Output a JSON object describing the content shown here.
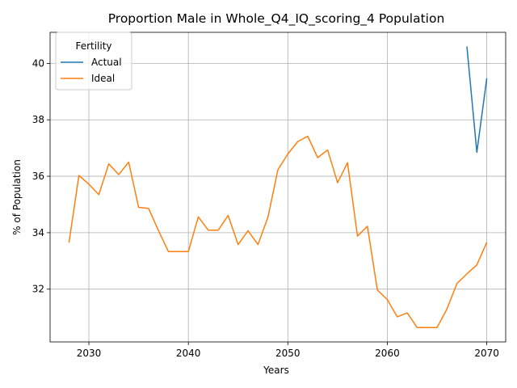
{
  "chart_data": {
    "type": "line",
    "title": "Proportion Male in Whole_Q4_IQ_scoring_4 Population",
    "xlabel": "Years",
    "ylabel": "% of Population",
    "xlim": [
      2026.1,
      2071.9
    ],
    "ylim": [
      30.13,
      41.1
    ],
    "xticks": [
      2030,
      2040,
      2050,
      2060,
      2070
    ],
    "yticks": [
      32,
      34,
      36,
      38,
      40
    ],
    "grid": true,
    "legend": {
      "title": "Fertility",
      "placement": "top-left"
    },
    "series": [
      {
        "name": "Actual",
        "color": "#1f77b4",
        "x": [
          2068,
          2069,
          2070
        ],
        "y": [
          40.6,
          36.85,
          39.47
        ]
      },
      {
        "name": "Ideal",
        "color": "#ff7f0e",
        "x": [
          2028,
          2029,
          2030,
          2031,
          2032,
          2033,
          2034,
          2035,
          2036,
          2037,
          2038,
          2039,
          2040,
          2041,
          2042,
          2043,
          2044,
          2045,
          2046,
          2047,
          2048,
          2049,
          2050,
          2051,
          2052,
          2053,
          2054,
          2055,
          2056,
          2057,
          2058,
          2059,
          2060,
          2061,
          2062,
          2063,
          2064,
          2065,
          2066,
          2067,
          2068,
          2069,
          2070
        ],
        "y": [
          33.65,
          36.03,
          35.72,
          35.35,
          36.44,
          36.06,
          36.5,
          34.9,
          34.86,
          34.07,
          33.33,
          33.33,
          33.33,
          34.56,
          34.09,
          34.09,
          34.61,
          33.58,
          34.07,
          33.58,
          34.55,
          36.23,
          36.79,
          37.23,
          37.42,
          36.66,
          36.93,
          35.77,
          36.48,
          33.88,
          34.23,
          31.97,
          31.63,
          31.02,
          31.16,
          30.64,
          30.64,
          30.64,
          31.3,
          32.2,
          32.54,
          32.86,
          33.66
        ]
      }
    ]
  }
}
